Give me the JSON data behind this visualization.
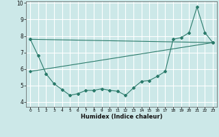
{
  "title": "",
  "xlabel": "Humidex (Indice chaleur)",
  "background_color": "#cce8e8",
  "grid_color": "#ffffff",
  "line_color": "#2a7a6a",
  "xlim": [
    -0.5,
    23.5
  ],
  "ylim": [
    3.7,
    10.1
  ],
  "yticks": [
    4,
    5,
    6,
    7,
    8,
    9,
    10
  ],
  "xtick_labels": [
    "0",
    "1",
    "2",
    "3",
    "4",
    "5",
    "6",
    "7",
    "8",
    "9",
    "10",
    "11",
    "12",
    "13",
    "14",
    "15",
    "16",
    "17",
    "18",
    "19",
    "20",
    "21",
    "22",
    "23"
  ],
  "series1_x": [
    0,
    1,
    2,
    3,
    4,
    5,
    6,
    7,
    8,
    9,
    10,
    11,
    12,
    13,
    14,
    15,
    16,
    17,
    18,
    19,
    20,
    21,
    22,
    23
  ],
  "series1_y": [
    7.8,
    6.8,
    5.7,
    5.1,
    4.75,
    4.4,
    4.5,
    4.7,
    4.7,
    4.8,
    4.7,
    4.65,
    4.4,
    4.85,
    5.25,
    5.3,
    5.55,
    5.85,
    7.8,
    7.9,
    8.2,
    9.75,
    8.2,
    7.6
  ],
  "series2_x": [
    0,
    23
  ],
  "series2_y": [
    5.85,
    7.6
  ],
  "series3_x": [
    0,
    23
  ],
  "series3_y": [
    7.8,
    7.6
  ]
}
